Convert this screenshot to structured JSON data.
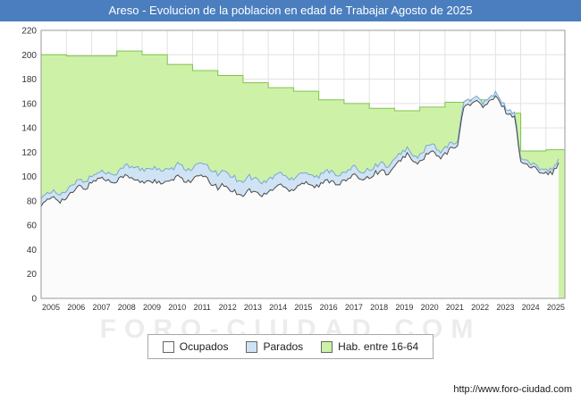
{
  "colors": {
    "title_bar_bg": "#4a7ebe",
    "title_text": "#ffffff",
    "grid": "#e2e2e2",
    "plot_border": "#999999",
    "axis_text": "#333333",
    "watermark": "#000000",
    "footer_text": "#1a1a1a"
  },
  "watermark": "FORO-CIUDAD.COM",
  "footer": {
    "url": "http://www.foro-ciudad.com"
  },
  "legend": [
    {
      "label": "Ocupados",
      "fill": "#fbfbfb"
    },
    {
      "label": "Parados",
      "fill": "#cfe3f5"
    },
    {
      "label": "Hab. entre 16-64",
      "fill": "#cdf2a7"
    }
  ],
  "chart_data": {
    "type": "area",
    "title": "Areso - Evolucion de la poblacion en edad de Trabajar Agosto de 2025",
    "xlabel": "",
    "ylabel": "",
    "x_range": [
      2005,
      2025.75
    ],
    "x_end_data": 2025.58,
    "ylim": [
      0,
      220
    ],
    "ytick_step": 20,
    "xticks": [
      2005,
      2006,
      2007,
      2008,
      2009,
      2010,
      2011,
      2012,
      2013,
      2014,
      2015,
      2016,
      2017,
      2018,
      2019,
      2020,
      2021,
      2022,
      2023,
      2024,
      2025
    ],
    "grid": true,
    "legend_position": "bottom",
    "series": {
      "habitantes_16_64": {
        "name": "Hab. entre 16-64",
        "style": "step-annual",
        "start": 2005,
        "step": 1,
        "fill": "#cdf2a7",
        "line": "#82c14f",
        "values": [
          200,
          199,
          199,
          203,
          200,
          192,
          187,
          183,
          177,
          173,
          170,
          163,
          160,
          156,
          154,
          157,
          161,
          163,
          152,
          121,
          122
        ]
      },
      "parados": {
        "name": "Parados",
        "style": "area-stacked-on-ocupados",
        "start": 2005,
        "step": 0.25,
        "fill": "#cfe3f5",
        "line": "#7aa6d2",
        "values": [
          6,
          5,
          5,
          6,
          6,
          6,
          5,
          6,
          5,
          5,
          6,
          6,
          6,
          8,
          9,
          10,
          10,
          10,
          11,
          10,
          10,
          9,
          10,
          10,
          9,
          10,
          10,
          11,
          11,
          12,
          12,
          11,
          12,
          11,
          11,
          10,
          10,
          10,
          9,
          9,
          9,
          9,
          8,
          8,
          8,
          8,
          8,
          7,
          7,
          7,
          6,
          6,
          6,
          6,
          6,
          6,
          6,
          5,
          5,
          5,
          5,
          7,
          6,
          5,
          5,
          4,
          4,
          4,
          4,
          4,
          3,
          3,
          3,
          3,
          3,
          3,
          3,
          3,
          3,
          3,
          3,
          3,
          3
        ]
      },
      "ocupados": {
        "name": "Ocupados",
        "style": "area",
        "start": 2005,
        "step": 0.25,
        "fill": "#fbfbfb",
        "line": "#4a4a4a",
        "values": [
          76,
          80,
          84,
          80,
          82,
          87,
          92,
          90,
          95,
          99,
          98,
          96,
          97,
          101,
          99,
          97,
          95,
          97,
          96,
          94,
          95,
          98,
          100,
          96,
          97,
          101,
          99,
          94,
          91,
          93,
          89,
          87,
          85,
          89,
          87,
          84,
          87,
          91,
          94,
          89,
          90,
          94,
          96,
          92,
          92,
          96,
          97,
          94,
          96,
          99,
          101,
          98,
          100,
          103,
          105,
          102,
          107,
          114,
          119,
          111,
          112,
          117,
          121,
          115,
          118,
          123,
          127,
          157,
          160,
          162,
          157,
          161,
          165,
          159,
          151,
          150,
          113,
          109,
          107,
          105,
          104,
          102,
          112
        ]
      }
    }
  }
}
